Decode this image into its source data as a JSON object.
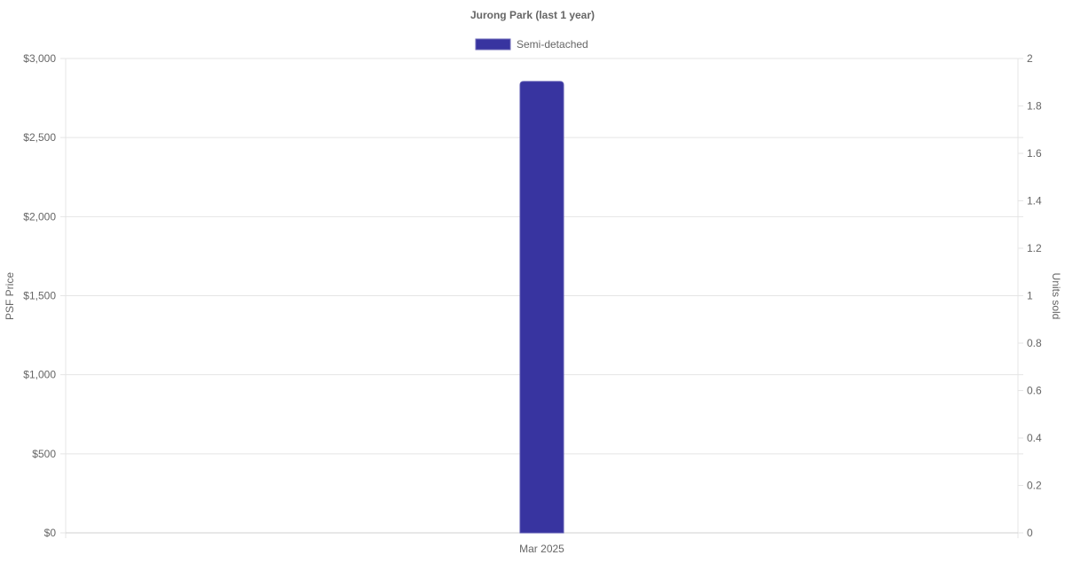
{
  "chart_data": {
    "type": "bar",
    "title": "Jurong Park (last 1 year)",
    "categories": [
      "Mar 2025"
    ],
    "series": [
      {
        "name": "Semi-detached",
        "values": [
          2855
        ],
        "color": "#3834a0"
      }
    ],
    "ylabel": "PSF Price",
    "y2label": "Units sold",
    "ylim": [
      0,
      3000
    ],
    "yticks": [
      "$0",
      "$500",
      "$1,000",
      "$1,500",
      "$2,000",
      "$2,500",
      "$3,000"
    ],
    "y2lim": [
      0,
      2
    ],
    "y2ticks": [
      "0",
      "0.2",
      "0.4",
      "0.6",
      "0.8",
      "1",
      "1.2",
      "1.4",
      "1.6",
      "1.8",
      "2"
    ],
    "grid": true,
    "legend": "top"
  }
}
